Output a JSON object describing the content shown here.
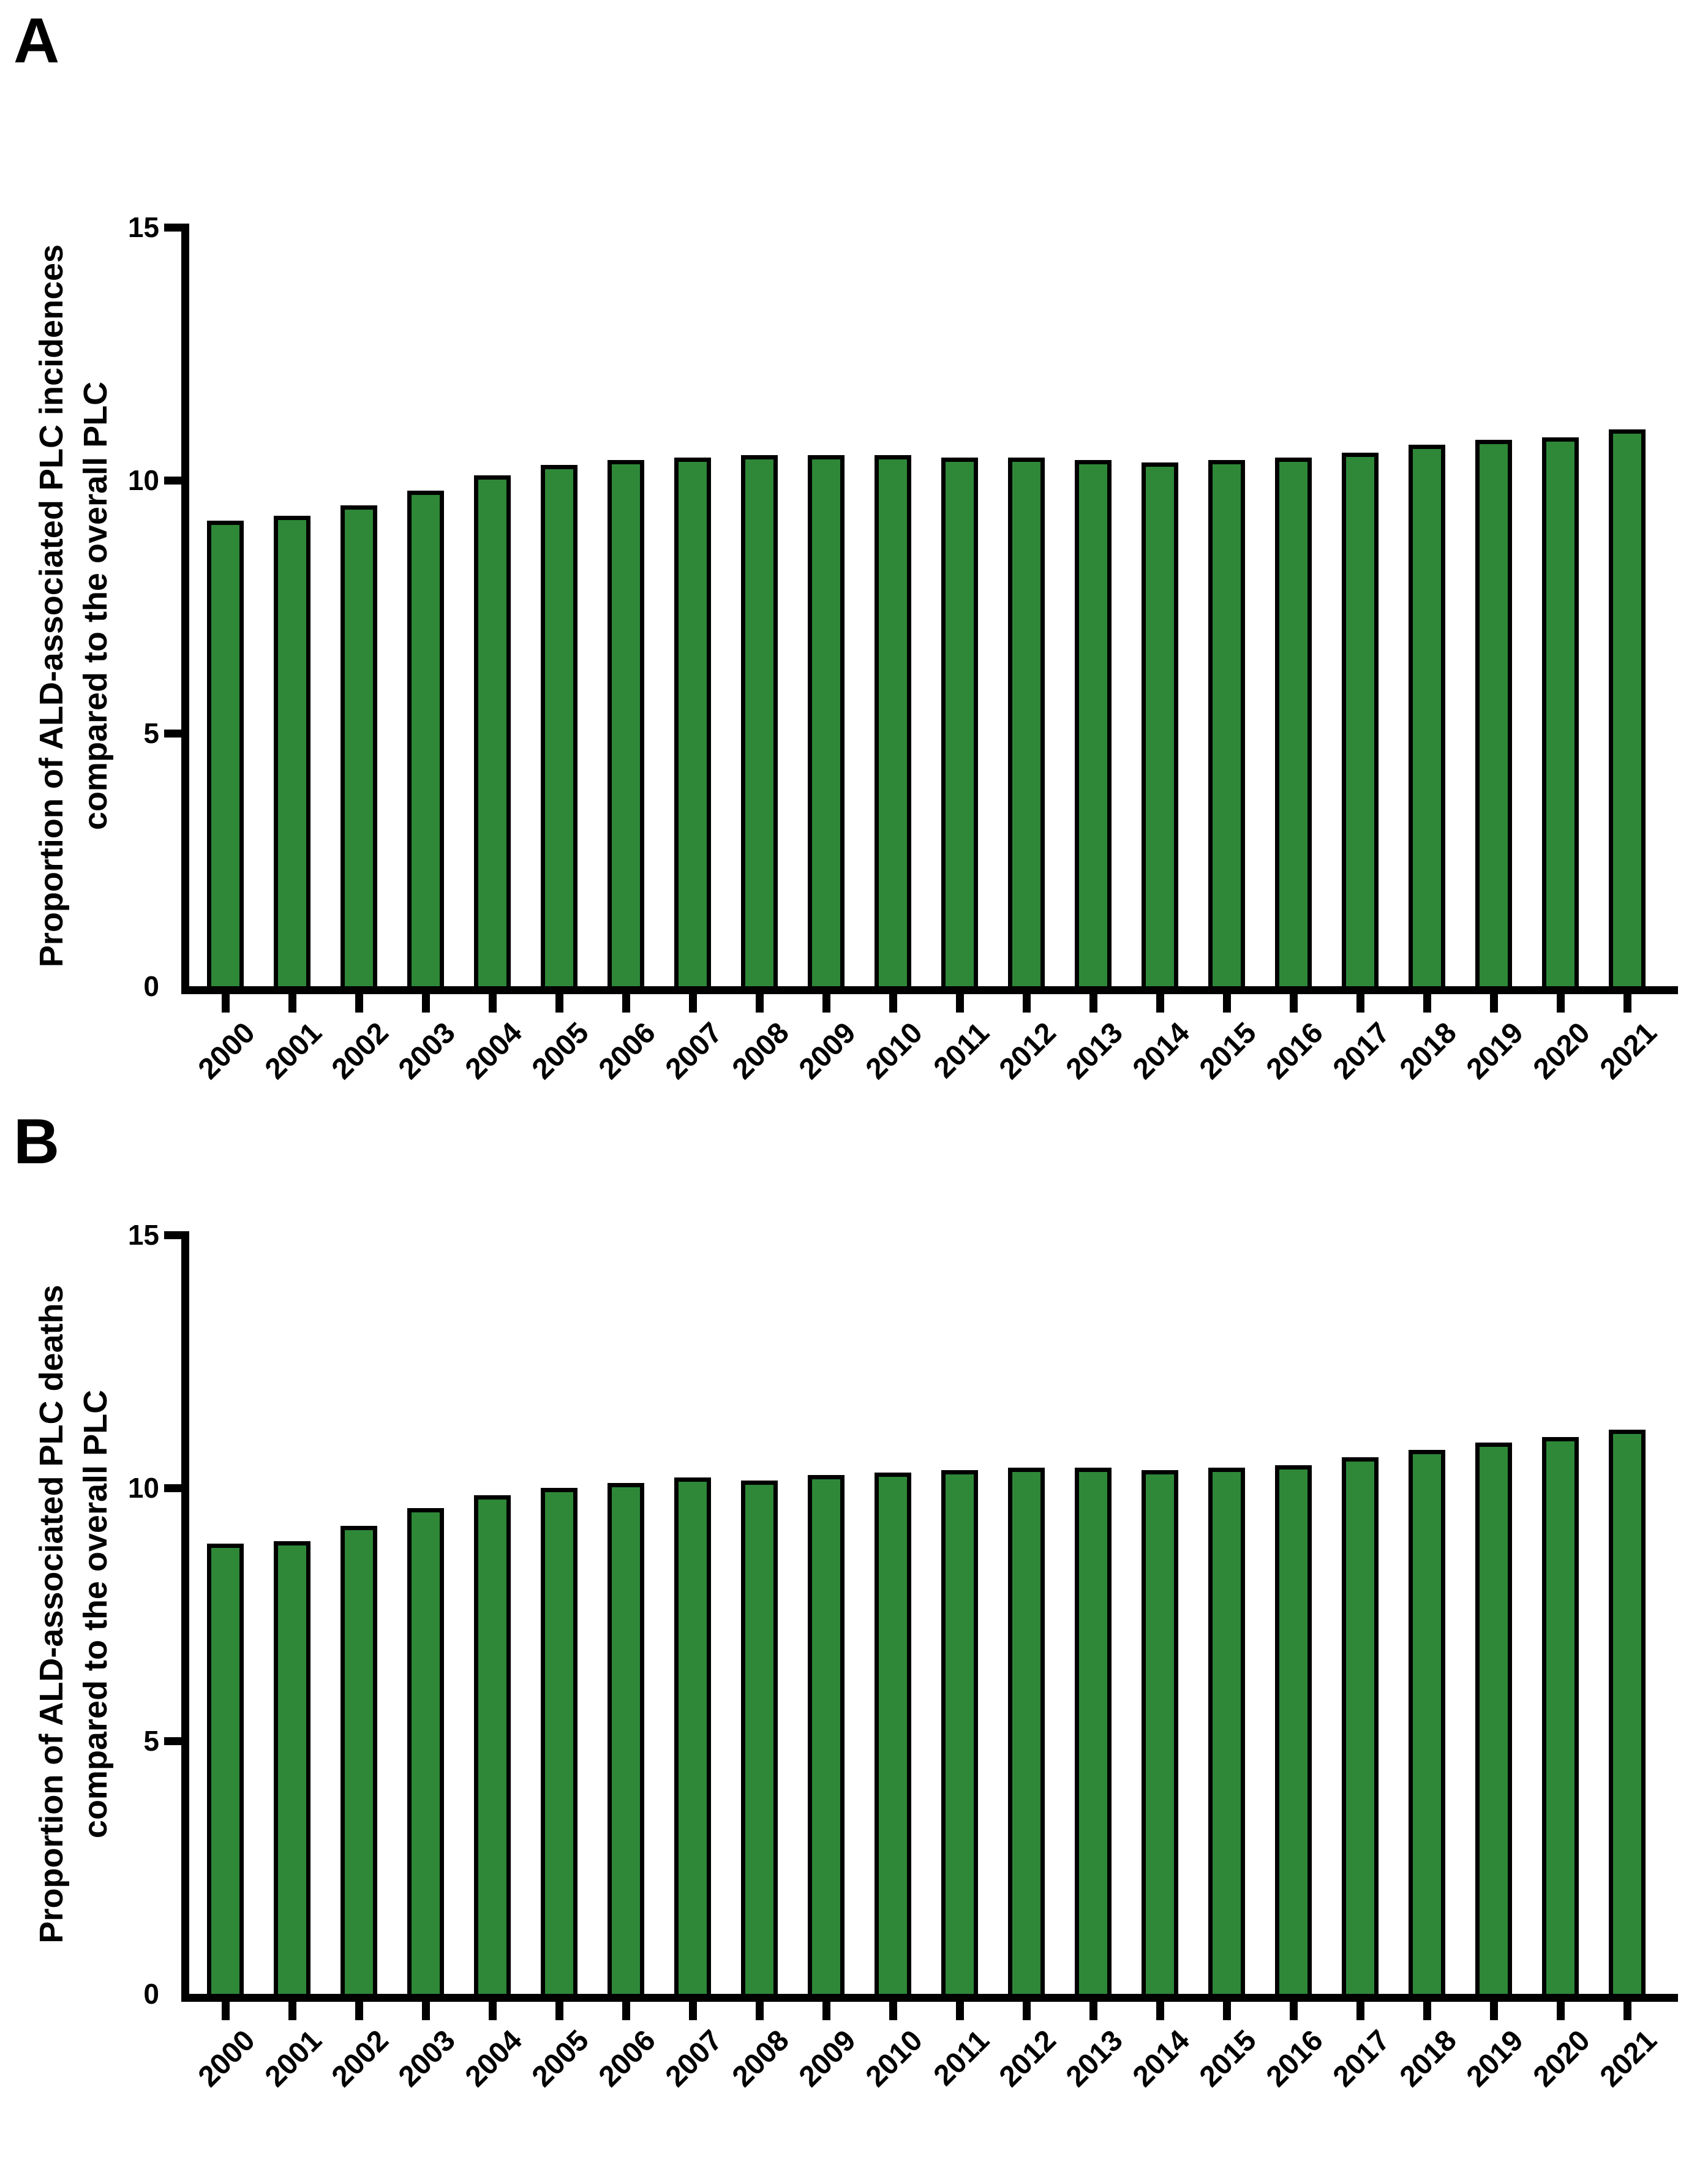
{
  "panels": [
    {
      "label": "A",
      "y_axis_title_line1": "Proportion of ALD-associated PLC incidences",
      "y_axis_title_line2": "compared to the overall PLC"
    },
    {
      "label": "B",
      "y_axis_title_line1": "Proportion of ALD-associated PLC deaths",
      "y_axis_title_line2": "compared to the overall PLC"
    }
  ],
  "chart_data": [
    {
      "type": "bar",
      "panel": "A",
      "title": "",
      "xlabel": "",
      "ylabel": "Proportion of ALD-associated PLC incidences compared to the overall PLC",
      "categories": [
        "2000",
        "2001",
        "2002",
        "2003",
        "2004",
        "2005",
        "2006",
        "2007",
        "2008",
        "2009",
        "2010",
        "2011",
        "2012",
        "2013",
        "2014",
        "2015",
        "2016",
        "2017",
        "2018",
        "2019",
        "2020",
        "2021"
      ],
      "values": [
        9.2,
        9.3,
        9.5,
        9.8,
        10.1,
        10.3,
        10.4,
        10.45,
        10.5,
        10.5,
        10.5,
        10.45,
        10.45,
        10.4,
        10.35,
        10.4,
        10.45,
        10.55,
        10.7,
        10.8,
        10.85,
        11.0
      ],
      "ylim": [
        0,
        15
      ],
      "yticks": [
        0,
        5,
        10,
        15
      ],
      "grid": false,
      "legend": "none",
      "bar_color": "#2E8838",
      "bar_border_color": "#000000"
    },
    {
      "type": "bar",
      "panel": "B",
      "title": "",
      "xlabel": "",
      "ylabel": "Proportion of ALD-associated PLC deaths compared to the overall PLC",
      "categories": [
        "2000",
        "2001",
        "2002",
        "2003",
        "2004",
        "2005",
        "2006",
        "2007",
        "2008",
        "2009",
        "2010",
        "2011",
        "2012",
        "2013",
        "2014",
        "2015",
        "2016",
        "2017",
        "2018",
        "2019",
        "2020",
        "2021"
      ],
      "values": [
        8.9,
        8.95,
        9.25,
        9.6,
        9.85,
        10.0,
        10.1,
        10.2,
        10.15,
        10.25,
        10.3,
        10.35,
        10.4,
        10.4,
        10.35,
        10.4,
        10.45,
        10.6,
        10.75,
        10.9,
        11.0,
        11.15
      ],
      "ylim": [
        0,
        15
      ],
      "yticks": [
        0,
        5,
        10,
        15
      ],
      "grid": false,
      "legend": "none",
      "bar_color": "#2E8838",
      "bar_border_color": "#000000"
    }
  ]
}
